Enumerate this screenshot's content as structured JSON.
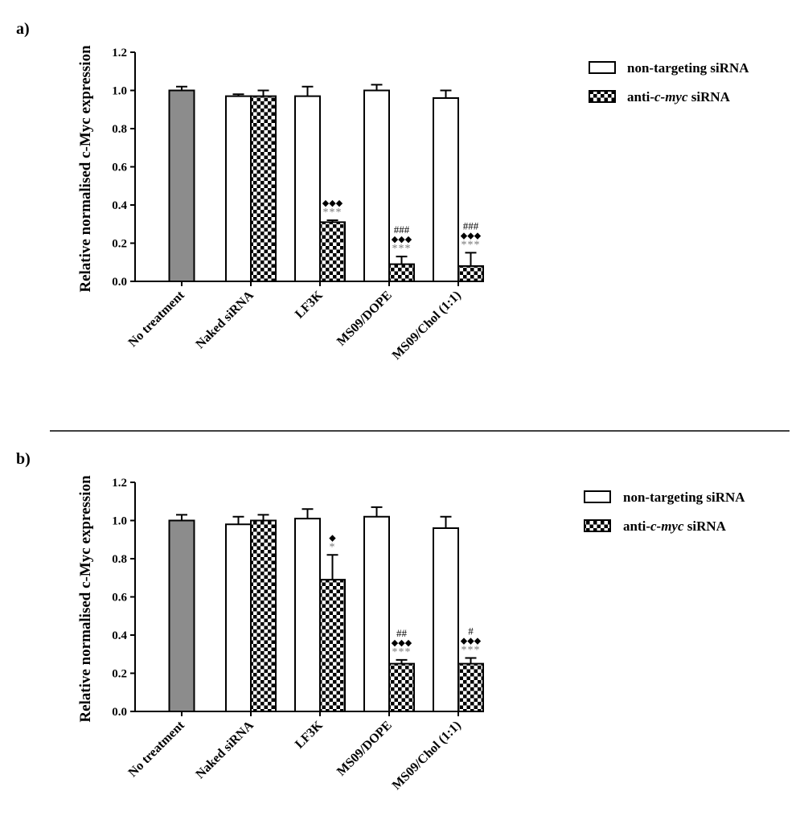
{
  "chart_data": [
    {
      "panel": "a)",
      "type": "bar",
      "ylabel": "Relative normalised c-Myc expression",
      "ylim": [
        0,
        1.2
      ],
      "yticks": [
        "0.0",
        "0.2",
        "0.4",
        "0.6",
        "0.8",
        "1.0",
        "1.2"
      ],
      "categories": [
        "No treatment",
        "Naked siRNA",
        "LF3K",
        "MS09/DOPE",
        "MS09/Chol (1:1)"
      ],
      "control": {
        "value": 1.0,
        "error": 0.02
      },
      "series": [
        {
          "name": "non-targeting siRNA",
          "values": [
            null,
            0.97,
            0.97,
            1.0,
            0.96
          ],
          "errors": [
            null,
            0.01,
            0.05,
            0.03,
            0.04
          ]
        },
        {
          "name": "anti-c-myc siRNA",
          "values": [
            null,
            0.97,
            0.31,
            0.09,
            0.08
          ],
          "errors": [
            null,
            0.03,
            0.01,
            0.04,
            0.07
          ]
        }
      ],
      "annotations": [
        {
          "category": 2,
          "stars": "***",
          "diamonds": "◆◆◆",
          "hashes": ""
        },
        {
          "category": 3,
          "stars": "***",
          "diamonds": "◆◆◆",
          "hashes": "###"
        },
        {
          "category": 4,
          "stars": "***",
          "diamonds": "◆◆◆",
          "hashes": "###"
        }
      ]
    },
    {
      "panel": "b)",
      "type": "bar",
      "ylabel": "Relative normalised c-Myc expression",
      "ylim": [
        0,
        1.2
      ],
      "yticks": [
        "0.0",
        "0.2",
        "0.4",
        "0.6",
        "0.8",
        "1.0",
        "1.2"
      ],
      "categories": [
        "No treatment",
        "Naked siRNA",
        "LF3K",
        "MS09/DOPE",
        "MS09/Chol (1:1)"
      ],
      "control": {
        "value": 1.0,
        "error": 0.03
      },
      "series": [
        {
          "name": "non-targeting siRNA",
          "values": [
            null,
            0.98,
            1.01,
            1.02,
            0.96
          ],
          "errors": [
            null,
            0.04,
            0.05,
            0.05,
            0.06
          ]
        },
        {
          "name": "anti-c-myc siRNA",
          "values": [
            null,
            1.0,
            0.69,
            0.25,
            0.25
          ],
          "errors": [
            null,
            0.03,
            0.13,
            0.02,
            0.03
          ]
        }
      ],
      "annotations": [
        {
          "category": 2,
          "stars": "*",
          "diamonds": "◆",
          "hashes": ""
        },
        {
          "category": 3,
          "stars": "***",
          "diamonds": "◆◆◆",
          "hashes": "##"
        },
        {
          "category": 4,
          "stars": "***",
          "diamonds": "◆◆◆",
          "hashes": "#"
        }
      ]
    }
  ],
  "legend_labels": {
    "nt": "non-targeting siRNA",
    "anti_prefix": "anti-",
    "anti_italic": "c-myc",
    "anti_suffix": " siRNA"
  },
  "colors": {
    "control_bar": "#8c8c8c",
    "nt_bar": "#ffffff",
    "axis": "#000000",
    "star": "#777777"
  }
}
